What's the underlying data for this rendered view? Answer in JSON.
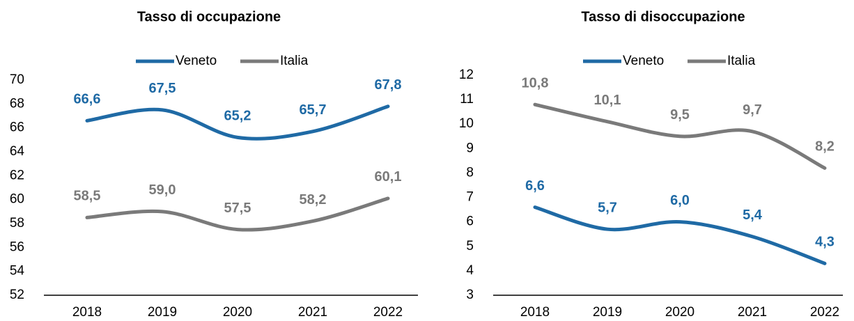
{
  "chart_data": [
    {
      "type": "line",
      "title": "Tasso di occupazione",
      "categories": [
        "2018",
        "2019",
        "2020",
        "2021",
        "2022"
      ],
      "series": [
        {
          "name": "Veneto",
          "color": "#1f6aa5",
          "values": [
            66.6,
            67.5,
            65.2,
            65.7,
            67.8
          ],
          "value_labels": [
            "66,6",
            "67,5",
            "65,2",
            "65,7",
            "67,8"
          ]
        },
        {
          "name": "Italia",
          "color": "#7a7a7a",
          "values": [
            58.5,
            59.0,
            57.5,
            58.2,
            60.1
          ],
          "value_labels": [
            "58,5",
            "59,0",
            "57,5",
            "58,2",
            "60,1"
          ]
        }
      ],
      "ylim": [
        52,
        70
      ],
      "yticks": [
        52,
        54,
        56,
        58,
        60,
        62,
        64,
        66,
        68,
        70
      ],
      "grid": false,
      "legend": "top"
    },
    {
      "type": "line",
      "title": "Tasso di disoccupazione",
      "categories": [
        "2018",
        "2019",
        "2020",
        "2021",
        "2022"
      ],
      "series": [
        {
          "name": "Veneto",
          "color": "#1f6aa5",
          "values": [
            6.6,
            5.7,
            6.0,
            5.4,
            4.3
          ],
          "value_labels": [
            "6,6",
            "5,7",
            "6,0",
            "5,4",
            "4,3"
          ]
        },
        {
          "name": "Italia",
          "color": "#7a7a7a",
          "values": [
            10.8,
            10.1,
            9.5,
            9.7,
            8.2
          ],
          "value_labels": [
            "10,8",
            "10,1",
            "9,5",
            "9,7",
            "8,2"
          ]
        }
      ],
      "ylim": [
        3,
        12
      ],
      "yticks": [
        3,
        4,
        5,
        6,
        7,
        8,
        9,
        10,
        11,
        12
      ],
      "grid": false,
      "legend": "top"
    }
  ]
}
